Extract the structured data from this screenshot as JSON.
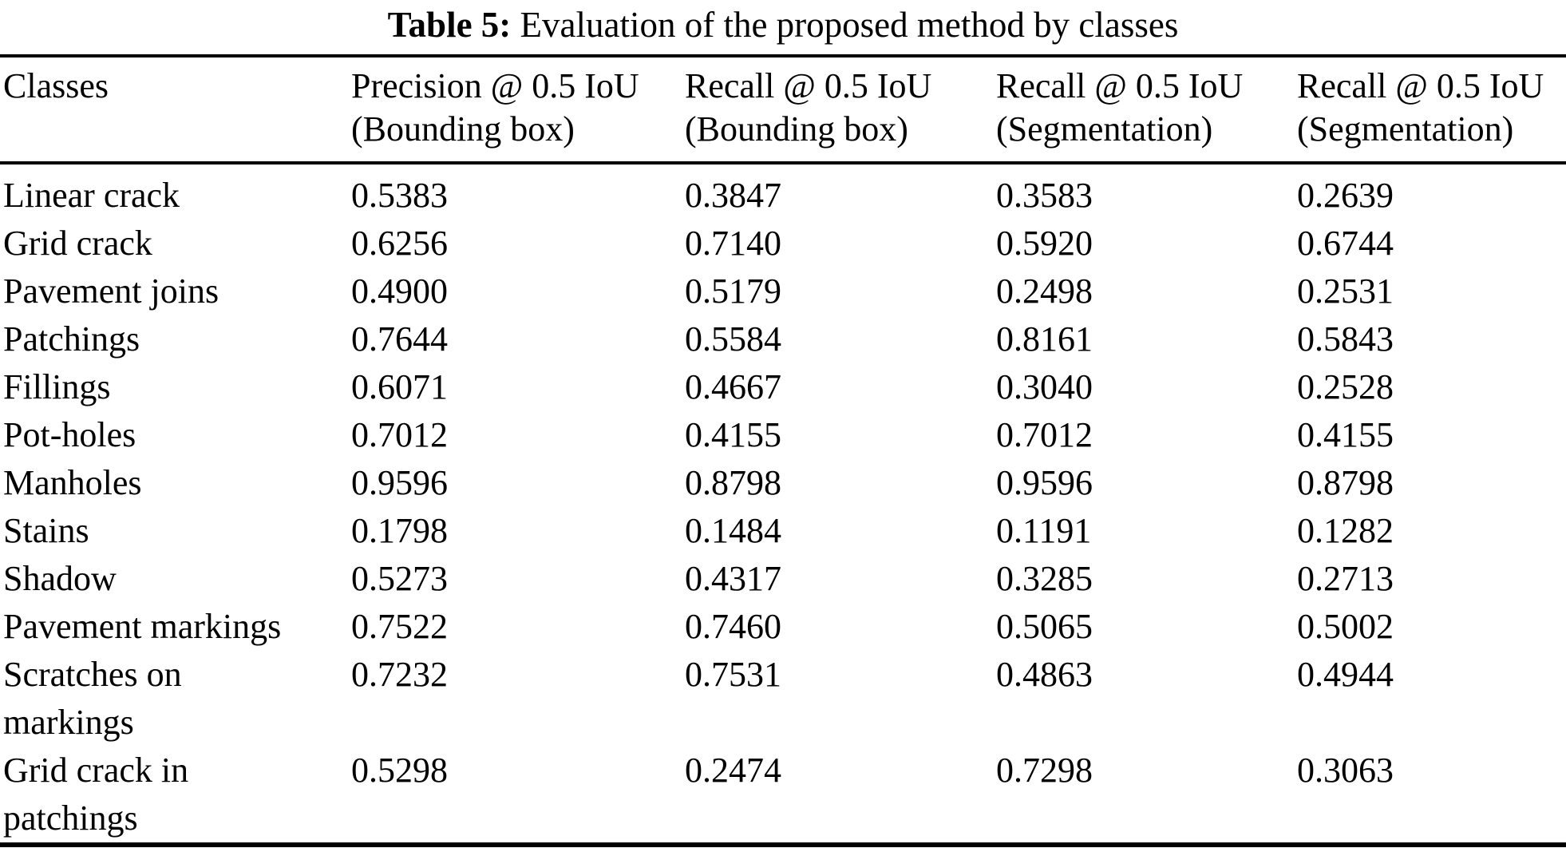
{
  "caption": {
    "label": "Table 5:",
    "text": "Evaluation of the proposed method by classes"
  },
  "table": {
    "columns": [
      {
        "label": "Classes"
      },
      {
        "label": "Precision @ 0.5 IoU\n(Bounding box)"
      },
      {
        "label": "Recall @ 0.5 IoU\n(Bounding box)"
      },
      {
        "label": "Recall @ 0.5 IoU\n(Segmentation)"
      },
      {
        "label": "Recall @ 0.5 IoU\n(Segmentation)"
      }
    ],
    "rows": [
      {
        "class": "Linear crack",
        "values": [
          "0.5383",
          "0.3847",
          "0.3583",
          "0.2639"
        ]
      },
      {
        "class": "Grid crack",
        "values": [
          "0.6256",
          "0.7140",
          "0.5920",
          "0.6744"
        ]
      },
      {
        "class": "Pavement joins",
        "values": [
          "0.4900",
          "0.5179",
          "0.2498",
          "0.2531"
        ]
      },
      {
        "class": "Patchings",
        "values": [
          "0.7644",
          "0.5584",
          "0.8161",
          "0.5843"
        ]
      },
      {
        "class": "Fillings",
        "values": [
          "0.6071",
          "0.4667",
          "0.3040",
          "0.2528"
        ]
      },
      {
        "class": "Pot-holes",
        "values": [
          "0.7012",
          "0.4155",
          "0.7012",
          "0.4155"
        ]
      },
      {
        "class": "Manholes",
        "values": [
          "0.9596",
          "0.8798",
          "0.9596",
          "0.8798"
        ]
      },
      {
        "class": "Stains",
        "values": [
          "0.1798",
          "0.1484",
          "0.1191",
          "0.1282"
        ]
      },
      {
        "class": "Shadow",
        "values": [
          "0.5273",
          "0.4317",
          "0.3285",
          "0.2713"
        ]
      },
      {
        "class": "Pavement markings",
        "values": [
          "0.7522",
          "0.7460",
          "0.5065",
          "0.5002"
        ]
      },
      {
        "class": "Scratches on\nmarkings",
        "values": [
          "0.7232",
          "0.7531",
          "0.4863",
          "0.4944"
        ]
      },
      {
        "class": "Grid crack in\npatchings",
        "values": [
          "0.5298",
          "0.2474",
          "0.7298",
          "0.3063"
        ]
      }
    ]
  }
}
